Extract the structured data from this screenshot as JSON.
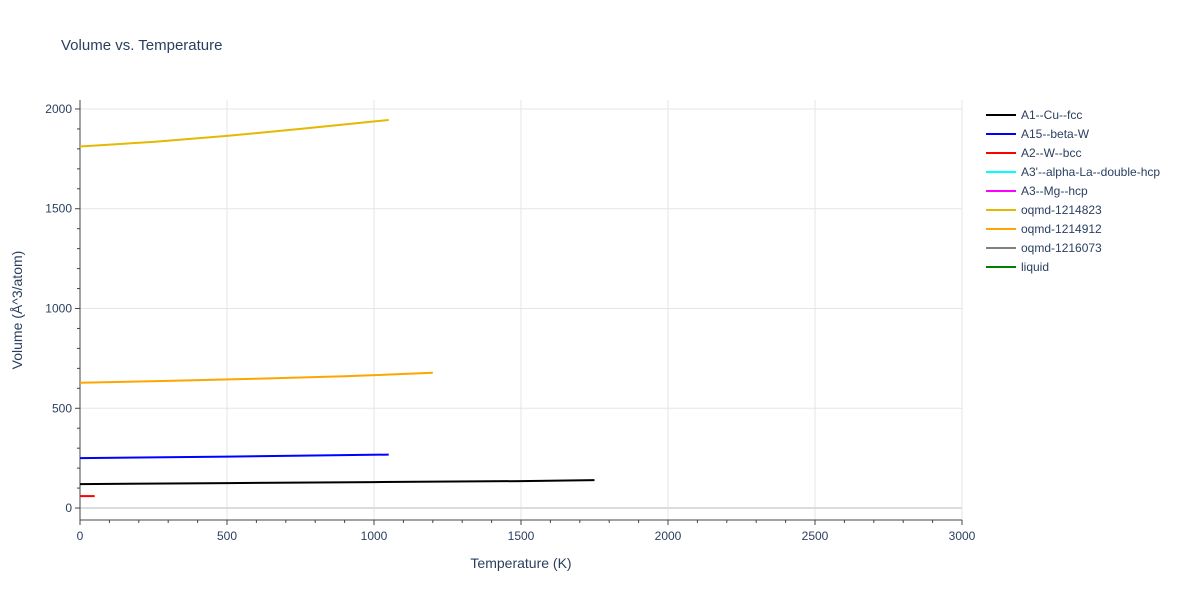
{
  "chart_data": {
    "type": "line",
    "title": "Volume vs. Temperature",
    "xlabel": "Temperature (K)",
    "ylabel": "Volume (Å^3/atom)",
    "xlim": [
      0,
      3000
    ],
    "ylim": [
      -60,
      2045
    ],
    "xticks": [
      0,
      500,
      1000,
      1500,
      2000,
      2500,
      3000
    ],
    "yticks": [
      0,
      500,
      1000,
      1500,
      2000
    ],
    "grid": true,
    "legend_position": "right",
    "series": [
      {
        "name": "A1--Cu--fcc",
        "color": "#000000",
        "points": [
          [
            0,
            120
          ],
          [
            500,
            125
          ],
          [
            1000,
            130
          ],
          [
            1500,
            135
          ],
          [
            1750,
            140
          ]
        ]
      },
      {
        "name": "A15--beta-W",
        "color": "#0000ff",
        "points": [
          [
            0,
            250
          ],
          [
            500,
            258
          ],
          [
            1050,
            268
          ]
        ]
      },
      {
        "name": "A2--W--bcc",
        "color": "#ff0000",
        "points": [
          [
            0,
            60
          ],
          [
            50,
            60
          ]
        ]
      },
      {
        "name": "A3'--alpha-La--double-hcp",
        "color": "#00ffff",
        "points": []
      },
      {
        "name": "A3--Mg--hcp",
        "color": "#ff00ff",
        "points": []
      },
      {
        "name": "oqmd-1214823",
        "color": "#e6b800",
        "points": [
          [
            0,
            1812
          ],
          [
            250,
            1835
          ],
          [
            500,
            1865
          ],
          [
            750,
            1900
          ],
          [
            1050,
            1945
          ]
        ]
      },
      {
        "name": "oqmd-1214912",
        "color": "#ffa500",
        "points": [
          [
            0,
            628
          ],
          [
            300,
            637
          ],
          [
            600,
            648
          ],
          [
            900,
            660
          ],
          [
            1200,
            678
          ]
        ]
      },
      {
        "name": "oqmd-1216073",
        "color": "#808080",
        "points": []
      },
      {
        "name": "liquid",
        "color": "#008000",
        "points": []
      }
    ]
  }
}
